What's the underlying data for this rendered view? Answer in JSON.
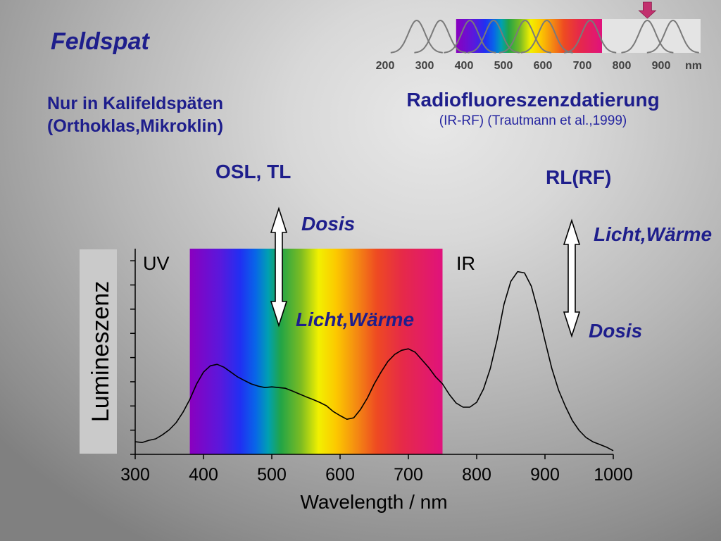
{
  "slide": {
    "title": "Feldspat",
    "note_line1": "Nur in Kalifeldspäten",
    "note_line2": "(Orthoklas,Mikroklin)",
    "method_title": "Radiofluoreszenzdatierung",
    "method_ref": "(IR-RF) (Trautmann et al.,1999)",
    "label_osl_tl": "OSL, TL",
    "label_rl_rf": "RL(RF)",
    "osl_arrow_top": "Dosis",
    "osl_arrow_bottom": "Licht,Wärme",
    "rf_arrow_top": "Licht,Wärme",
    "rf_arrow_bottom": "Dosis"
  },
  "colors": {
    "text": "#1e1e8c",
    "marker": "#c2306e"
  },
  "mini_scale": {
    "range_nm": [
      200,
      1000
    ],
    "tick_values": [
      200,
      300,
      400,
      500,
      600,
      700,
      800,
      900
    ],
    "tick_labels": [
      "200",
      "300",
      "400",
      "500",
      "600",
      "700",
      "800",
      "900"
    ],
    "unit": "nm",
    "visible_band_nm": [
      380,
      750
    ],
    "curve_peaks_nm": [
      280,
      340,
      415,
      475,
      555,
      610,
      720,
      865,
      930
    ],
    "marker_nm": 865,
    "marker_icon": "down-arrow-icon"
  },
  "chart_data": {
    "type": "line",
    "xlabel": "Wavelength / nm",
    "ylabel": "Lumineszenz",
    "xlim": [
      300,
      1000
    ],
    "ylim": [
      0,
      8.5
    ],
    "xticks": [
      300,
      400,
      500,
      600,
      700,
      800,
      900,
      1000
    ],
    "xtick_labels": [
      "300",
      "400",
      "500",
      "600",
      "700",
      "800",
      "900",
      "1000"
    ],
    "yticks": [
      0,
      1,
      2,
      3,
      4,
      5,
      6,
      7,
      8
    ],
    "visible_band": [
      380,
      750
    ],
    "region_labels": {
      "uv": "UV",
      "ir": "IR"
    },
    "grid": false,
    "legend": "none",
    "series": [
      {
        "x": [
          300,
          310,
          320,
          330,
          340,
          350,
          360,
          370,
          380,
          390,
          400,
          410,
          420,
          430,
          440,
          450,
          460,
          470,
          480,
          490,
          500,
          510,
          520,
          530,
          540,
          550,
          560,
          570,
          580,
          590,
          600,
          610,
          620,
          630,
          640,
          650,
          660,
          670,
          680,
          690,
          700,
          710,
          720,
          730,
          740,
          750,
          760,
          770,
          780,
          790,
          800,
          810,
          820,
          830,
          840,
          850,
          860,
          870,
          880,
          890,
          900,
          910,
          920,
          930,
          940,
          950,
          960,
          970,
          980,
          990,
          1000
        ],
        "y": [
          0.52,
          0.49,
          0.58,
          0.64,
          0.81,
          1.02,
          1.31,
          1.74,
          2.27,
          2.91,
          3.4,
          3.66,
          3.72,
          3.6,
          3.4,
          3.2,
          3.05,
          2.91,
          2.82,
          2.76,
          2.79,
          2.76,
          2.73,
          2.62,
          2.5,
          2.38,
          2.27,
          2.15,
          2.01,
          1.77,
          1.6,
          1.45,
          1.51,
          1.86,
          2.33,
          2.91,
          3.4,
          3.84,
          4.13,
          4.3,
          4.36,
          4.22,
          3.9,
          3.58,
          3.2,
          2.91,
          2.47,
          2.12,
          1.95,
          1.95,
          2.15,
          2.7,
          3.55,
          4.75,
          6.2,
          7.15,
          7.55,
          7.5,
          6.95,
          5.9,
          4.7,
          3.55,
          2.65,
          1.98,
          1.4,
          0.99,
          0.7,
          0.52,
          0.41,
          0.3,
          0.15
        ]
      }
    ]
  }
}
